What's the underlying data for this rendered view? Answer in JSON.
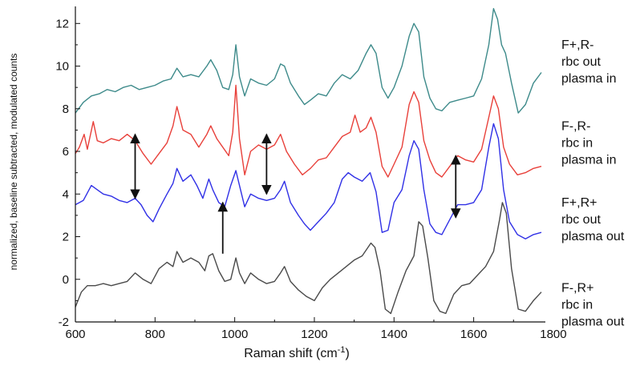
{
  "chart_data": {
    "type": "line",
    "title": "",
    "xlabel": "Raman shift (cm",
    "xlabel_sup": "-1",
    "xlabel_close": ")",
    "ylabel": "normalized, baseline subtracted, modulated counts",
    "xlim": [
      600,
      1780
    ],
    "ylim": [
      -2,
      12.8
    ],
    "xticks": [
      600,
      800,
      1000,
      1200,
      1400,
      1600,
      1800
    ],
    "yticks": [
      -2,
      0,
      2,
      4,
      6,
      8,
      10,
      12
    ],
    "grid": false,
    "legend_position": "right, next to each trace",
    "series": [
      {
        "name": "F+,R- rbc out plasma in",
        "label_lines": [
          "F+,R-",
          "rbc out",
          "plasma in"
        ],
        "color": "#3d8a8a",
        "points": [
          [
            600,
            7.8
          ],
          [
            620,
            8.3
          ],
          [
            640,
            8.6
          ],
          [
            660,
            8.7
          ],
          [
            680,
            8.9
          ],
          [
            700,
            8.8
          ],
          [
            720,
            9.0
          ],
          [
            740,
            9.1
          ],
          [
            760,
            8.9
          ],
          [
            780,
            9.0
          ],
          [
            800,
            9.1
          ],
          [
            820,
            9.3
          ],
          [
            840,
            9.4
          ],
          [
            855,
            9.9
          ],
          [
            870,
            9.5
          ],
          [
            890,
            9.6
          ],
          [
            910,
            9.5
          ],
          [
            930,
            10.0
          ],
          [
            940,
            10.3
          ],
          [
            955,
            9.8
          ],
          [
            970,
            9.0
          ],
          [
            985,
            8.9
          ],
          [
            995,
            9.6
          ],
          [
            1003,
            11.0
          ],
          [
            1012,
            9.5
          ],
          [
            1025,
            8.6
          ],
          [
            1040,
            9.4
          ],
          [
            1060,
            9.2
          ],
          [
            1080,
            9.1
          ],
          [
            1100,
            9.4
          ],
          [
            1115,
            10.1
          ],
          [
            1125,
            10.0
          ],
          [
            1140,
            9.2
          ],
          [
            1160,
            8.6
          ],
          [
            1175,
            8.2
          ],
          [
            1190,
            8.4
          ],
          [
            1210,
            8.7
          ],
          [
            1230,
            8.6
          ],
          [
            1250,
            9.2
          ],
          [
            1270,
            9.6
          ],
          [
            1290,
            9.4
          ],
          [
            1310,
            9.8
          ],
          [
            1330,
            10.6
          ],
          [
            1342,
            11.0
          ],
          [
            1355,
            10.6
          ],
          [
            1370,
            9.0
          ],
          [
            1385,
            8.5
          ],
          [
            1400,
            9.0
          ],
          [
            1420,
            10.0
          ],
          [
            1438,
            11.4
          ],
          [
            1450,
            12.0
          ],
          [
            1462,
            11.6
          ],
          [
            1475,
            9.5
          ],
          [
            1490,
            8.5
          ],
          [
            1505,
            8.0
          ],
          [
            1520,
            7.9
          ],
          [
            1540,
            8.3
          ],
          [
            1560,
            8.4
          ],
          [
            1580,
            8.5
          ],
          [
            1600,
            8.6
          ],
          [
            1620,
            9.4
          ],
          [
            1638,
            11.0
          ],
          [
            1650,
            12.7
          ],
          [
            1660,
            12.2
          ],
          [
            1670,
            11.0
          ],
          [
            1680,
            10.6
          ],
          [
            1695,
            9.2
          ],
          [
            1712,
            7.8
          ],
          [
            1730,
            8.2
          ],
          [
            1750,
            9.2
          ],
          [
            1770,
            9.7
          ]
        ]
      },
      {
        "name": "F-,R- rbc in plasma in",
        "label_lines": [
          "F-,R-",
          "rbc in",
          "plasma in"
        ],
        "color": "#e8403a",
        "points": [
          [
            600,
            5.9
          ],
          [
            610,
            6.2
          ],
          [
            622,
            6.8
          ],
          [
            630,
            6.1
          ],
          [
            645,
            7.4
          ],
          [
            655,
            6.5
          ],
          [
            670,
            6.4
          ],
          [
            690,
            6.6
          ],
          [
            710,
            6.5
          ],
          [
            730,
            6.8
          ],
          [
            750,
            6.5
          ],
          [
            770,
            5.9
          ],
          [
            790,
            5.4
          ],
          [
            810,
            5.9
          ],
          [
            830,
            6.4
          ],
          [
            845,
            7.2
          ],
          [
            855,
            8.1
          ],
          [
            870,
            7.0
          ],
          [
            890,
            6.8
          ],
          [
            910,
            6.2
          ],
          [
            930,
            6.8
          ],
          [
            940,
            7.2
          ],
          [
            955,
            6.6
          ],
          [
            970,
            6.2
          ],
          [
            985,
            5.8
          ],
          [
            995,
            6.9
          ],
          [
            1003,
            9.1
          ],
          [
            1012,
            6.6
          ],
          [
            1025,
            4.9
          ],
          [
            1040,
            6.0
          ],
          [
            1060,
            6.3
          ],
          [
            1080,
            6.1
          ],
          [
            1100,
            6.3
          ],
          [
            1115,
            6.8
          ],
          [
            1130,
            6.0
          ],
          [
            1150,
            5.4
          ],
          [
            1170,
            4.9
          ],
          [
            1190,
            5.2
          ],
          [
            1210,
            5.6
          ],
          [
            1230,
            5.7
          ],
          [
            1250,
            6.2
          ],
          [
            1270,
            6.7
          ],
          [
            1290,
            6.9
          ],
          [
            1302,
            7.7
          ],
          [
            1315,
            6.9
          ],
          [
            1330,
            7.1
          ],
          [
            1342,
            7.6
          ],
          [
            1355,
            6.9
          ],
          [
            1370,
            5.3
          ],
          [
            1385,
            4.8
          ],
          [
            1400,
            5.4
          ],
          [
            1420,
            6.2
          ],
          [
            1438,
            8.2
          ],
          [
            1450,
            8.8
          ],
          [
            1462,
            8.3
          ],
          [
            1475,
            6.5
          ],
          [
            1490,
            5.6
          ],
          [
            1505,
            5.0
          ],
          [
            1520,
            4.8
          ],
          [
            1540,
            5.3
          ],
          [
            1560,
            5.8
          ],
          [
            1580,
            5.6
          ],
          [
            1600,
            5.5
          ],
          [
            1620,
            6.1
          ],
          [
            1638,
            7.6
          ],
          [
            1650,
            8.6
          ],
          [
            1662,
            8.0
          ],
          [
            1675,
            6.2
          ],
          [
            1690,
            5.4
          ],
          [
            1710,
            4.9
          ],
          [
            1730,
            5.0
          ],
          [
            1750,
            5.2
          ],
          [
            1770,
            5.3
          ]
        ]
      },
      {
        "name": "F+,R+ rbc out plasma out",
        "label_lines": [
          "F+,R+",
          "rbc out",
          "plasma out"
        ],
        "color": "#3030e6",
        "points": [
          [
            600,
            3.5
          ],
          [
            620,
            3.7
          ],
          [
            640,
            4.4
          ],
          [
            655,
            4.2
          ],
          [
            670,
            4.0
          ],
          [
            690,
            3.9
          ],
          [
            710,
            3.7
          ],
          [
            730,
            3.6
          ],
          [
            750,
            3.8
          ],
          [
            765,
            3.5
          ],
          [
            780,
            3.0
          ],
          [
            795,
            2.7
          ],
          [
            810,
            3.3
          ],
          [
            830,
            4.0
          ],
          [
            845,
            4.5
          ],
          [
            855,
            5.2
          ],
          [
            870,
            4.6
          ],
          [
            890,
            4.9
          ],
          [
            905,
            4.4
          ],
          [
            920,
            3.8
          ],
          [
            935,
            4.7
          ],
          [
            945,
            4.2
          ],
          [
            960,
            3.6
          ],
          [
            975,
            3.4
          ],
          [
            990,
            4.4
          ],
          [
            1003,
            5.1
          ],
          [
            1012,
            4.4
          ],
          [
            1025,
            3.4
          ],
          [
            1040,
            4.0
          ],
          [
            1060,
            3.8
          ],
          [
            1080,
            3.7
          ],
          [
            1100,
            3.8
          ],
          [
            1115,
            4.2
          ],
          [
            1125,
            4.6
          ],
          [
            1140,
            3.6
          ],
          [
            1160,
            3.0
          ],
          [
            1175,
            2.6
          ],
          [
            1190,
            2.3
          ],
          [
            1210,
            2.7
          ],
          [
            1230,
            3.1
          ],
          [
            1250,
            3.6
          ],
          [
            1270,
            4.7
          ],
          [
            1285,
            5.0
          ],
          [
            1300,
            4.8
          ],
          [
            1320,
            4.6
          ],
          [
            1340,
            5.0
          ],
          [
            1355,
            4.1
          ],
          [
            1370,
            2.2
          ],
          [
            1385,
            2.3
          ],
          [
            1400,
            3.6
          ],
          [
            1420,
            4.2
          ],
          [
            1438,
            5.8
          ],
          [
            1450,
            6.5
          ],
          [
            1462,
            6.1
          ],
          [
            1475,
            4.2
          ],
          [
            1490,
            2.6
          ],
          [
            1505,
            2.2
          ],
          [
            1520,
            2.1
          ],
          [
            1540,
            2.8
          ],
          [
            1560,
            3.5
          ],
          [
            1580,
            3.5
          ],
          [
            1600,
            3.6
          ],
          [
            1620,
            4.2
          ],
          [
            1638,
            6.2
          ],
          [
            1650,
            7.3
          ],
          [
            1662,
            6.6
          ],
          [
            1675,
            4.2
          ],
          [
            1690,
            2.7
          ],
          [
            1710,
            2.1
          ],
          [
            1730,
            1.9
          ],
          [
            1750,
            2.1
          ],
          [
            1770,
            2.2
          ]
        ]
      },
      {
        "name": "F-,R+ rbc in plasma out",
        "label_lines": [
          "F-,R+",
          "rbc in",
          "plasma out"
        ],
        "color": "#4a4a4a",
        "points": [
          [
            600,
            -1.3
          ],
          [
            615,
            -0.6
          ],
          [
            630,
            -0.3
          ],
          [
            650,
            -0.3
          ],
          [
            670,
            -0.2
          ],
          [
            690,
            -0.3
          ],
          [
            710,
            -0.2
          ],
          [
            730,
            -0.1
          ],
          [
            750,
            0.3
          ],
          [
            770,
            0.0
          ],
          [
            790,
            -0.2
          ],
          [
            810,
            0.5
          ],
          [
            830,
            0.8
          ],
          [
            845,
            0.6
          ],
          [
            855,
            1.3
          ],
          [
            870,
            0.8
          ],
          [
            890,
            1.0
          ],
          [
            910,
            0.8
          ],
          [
            925,
            0.4
          ],
          [
            935,
            1.1
          ],
          [
            945,
            1.2
          ],
          [
            960,
            0.4
          ],
          [
            975,
            -0.1
          ],
          [
            990,
            0.0
          ],
          [
            1003,
            1.0
          ],
          [
            1012,
            0.3
          ],
          [
            1025,
            -0.2
          ],
          [
            1040,
            0.3
          ],
          [
            1060,
            0.0
          ],
          [
            1080,
            -0.2
          ],
          [
            1100,
            -0.1
          ],
          [
            1115,
            0.3
          ],
          [
            1125,
            0.6
          ],
          [
            1140,
            -0.1
          ],
          [
            1160,
            -0.5
          ],
          [
            1180,
            -0.8
          ],
          [
            1200,
            -1.0
          ],
          [
            1220,
            -0.4
          ],
          [
            1240,
            0.0
          ],
          [
            1260,
            0.3
          ],
          [
            1280,
            0.6
          ],
          [
            1300,
            0.9
          ],
          [
            1320,
            1.1
          ],
          [
            1342,
            1.7
          ],
          [
            1352,
            1.5
          ],
          [
            1365,
            0.4
          ],
          [
            1378,
            -1.4
          ],
          [
            1392,
            -1.6
          ],
          [
            1410,
            -0.6
          ],
          [
            1430,
            0.4
          ],
          [
            1450,
            1.1
          ],
          [
            1462,
            2.7
          ],
          [
            1472,
            2.5
          ],
          [
            1485,
            1.0
          ],
          [
            1500,
            -1.0
          ],
          [
            1515,
            -1.5
          ],
          [
            1530,
            -1.6
          ],
          [
            1550,
            -0.7
          ],
          [
            1570,
            -0.3
          ],
          [
            1590,
            -0.2
          ],
          [
            1610,
            0.2
          ],
          [
            1630,
            0.6
          ],
          [
            1650,
            1.3
          ],
          [
            1665,
            2.8
          ],
          [
            1672,
            3.6
          ],
          [
            1682,
            3.1
          ],
          [
            1695,
            0.5
          ],
          [
            1712,
            -1.4
          ],
          [
            1730,
            -1.5
          ],
          [
            1750,
            -1.0
          ],
          [
            1770,
            -0.6
          ]
        ]
      }
    ],
    "annotations": [
      {
        "type": "double-arrow",
        "x": 750,
        "y_from": 6.8,
        "y_to": 3.8
      },
      {
        "type": "double-arrow",
        "x": 1080,
        "y_from": 6.8,
        "y_to": 4.0
      },
      {
        "type": "double-arrow",
        "x": 1555,
        "y_from": 5.8,
        "y_to": 2.9
      },
      {
        "type": "single-arrow",
        "x": 970,
        "y_from": 1.2,
        "y_to": 3.6
      }
    ]
  }
}
